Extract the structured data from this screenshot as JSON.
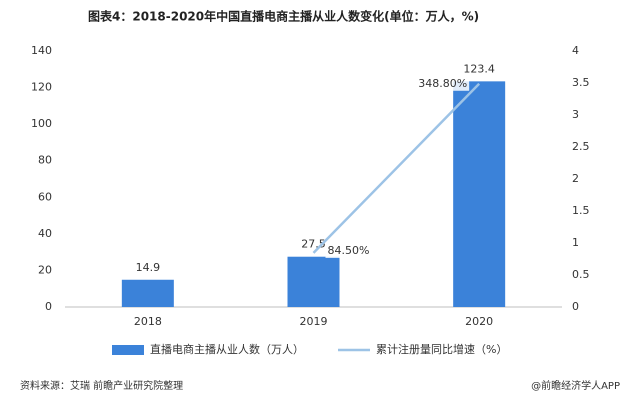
{
  "chart_data": {
    "type": "bar",
    "title": "图表4：2018-2020年中国直播电商主播从业人数变化(单位：万人，%)",
    "categories": [
      "2018",
      "2019",
      "2020"
    ],
    "series": [
      {
        "name": "直播电商主播从业人数（万人）",
        "color": "#3b82d9",
        "values": [
          14.9,
          27.5,
          123.4
        ]
      },
      {
        "name": "累计注册量同比增速（%）",
        "color": "#9dc3e6",
        "type": "line",
        "axis": "y2",
        "values": [
          null,
          0.845,
          3.488
        ],
        "value_labels": [
          null,
          "84.50%",
          "348.80%"
        ]
      }
    ],
    "ylim": [
      0,
      140
    ],
    "yticks": [
      0,
      20,
      40,
      60,
      80,
      100,
      120,
      140
    ],
    "y2lim": [
      0,
      4
    ],
    "y2ticks": [
      0,
      0.5,
      1,
      1.5,
      2,
      2.5,
      3,
      3.5,
      4
    ],
    "source": "资料来源：艾瑞 前瞻产业研究院整理",
    "brand": "@前瞻经济学人APP"
  }
}
